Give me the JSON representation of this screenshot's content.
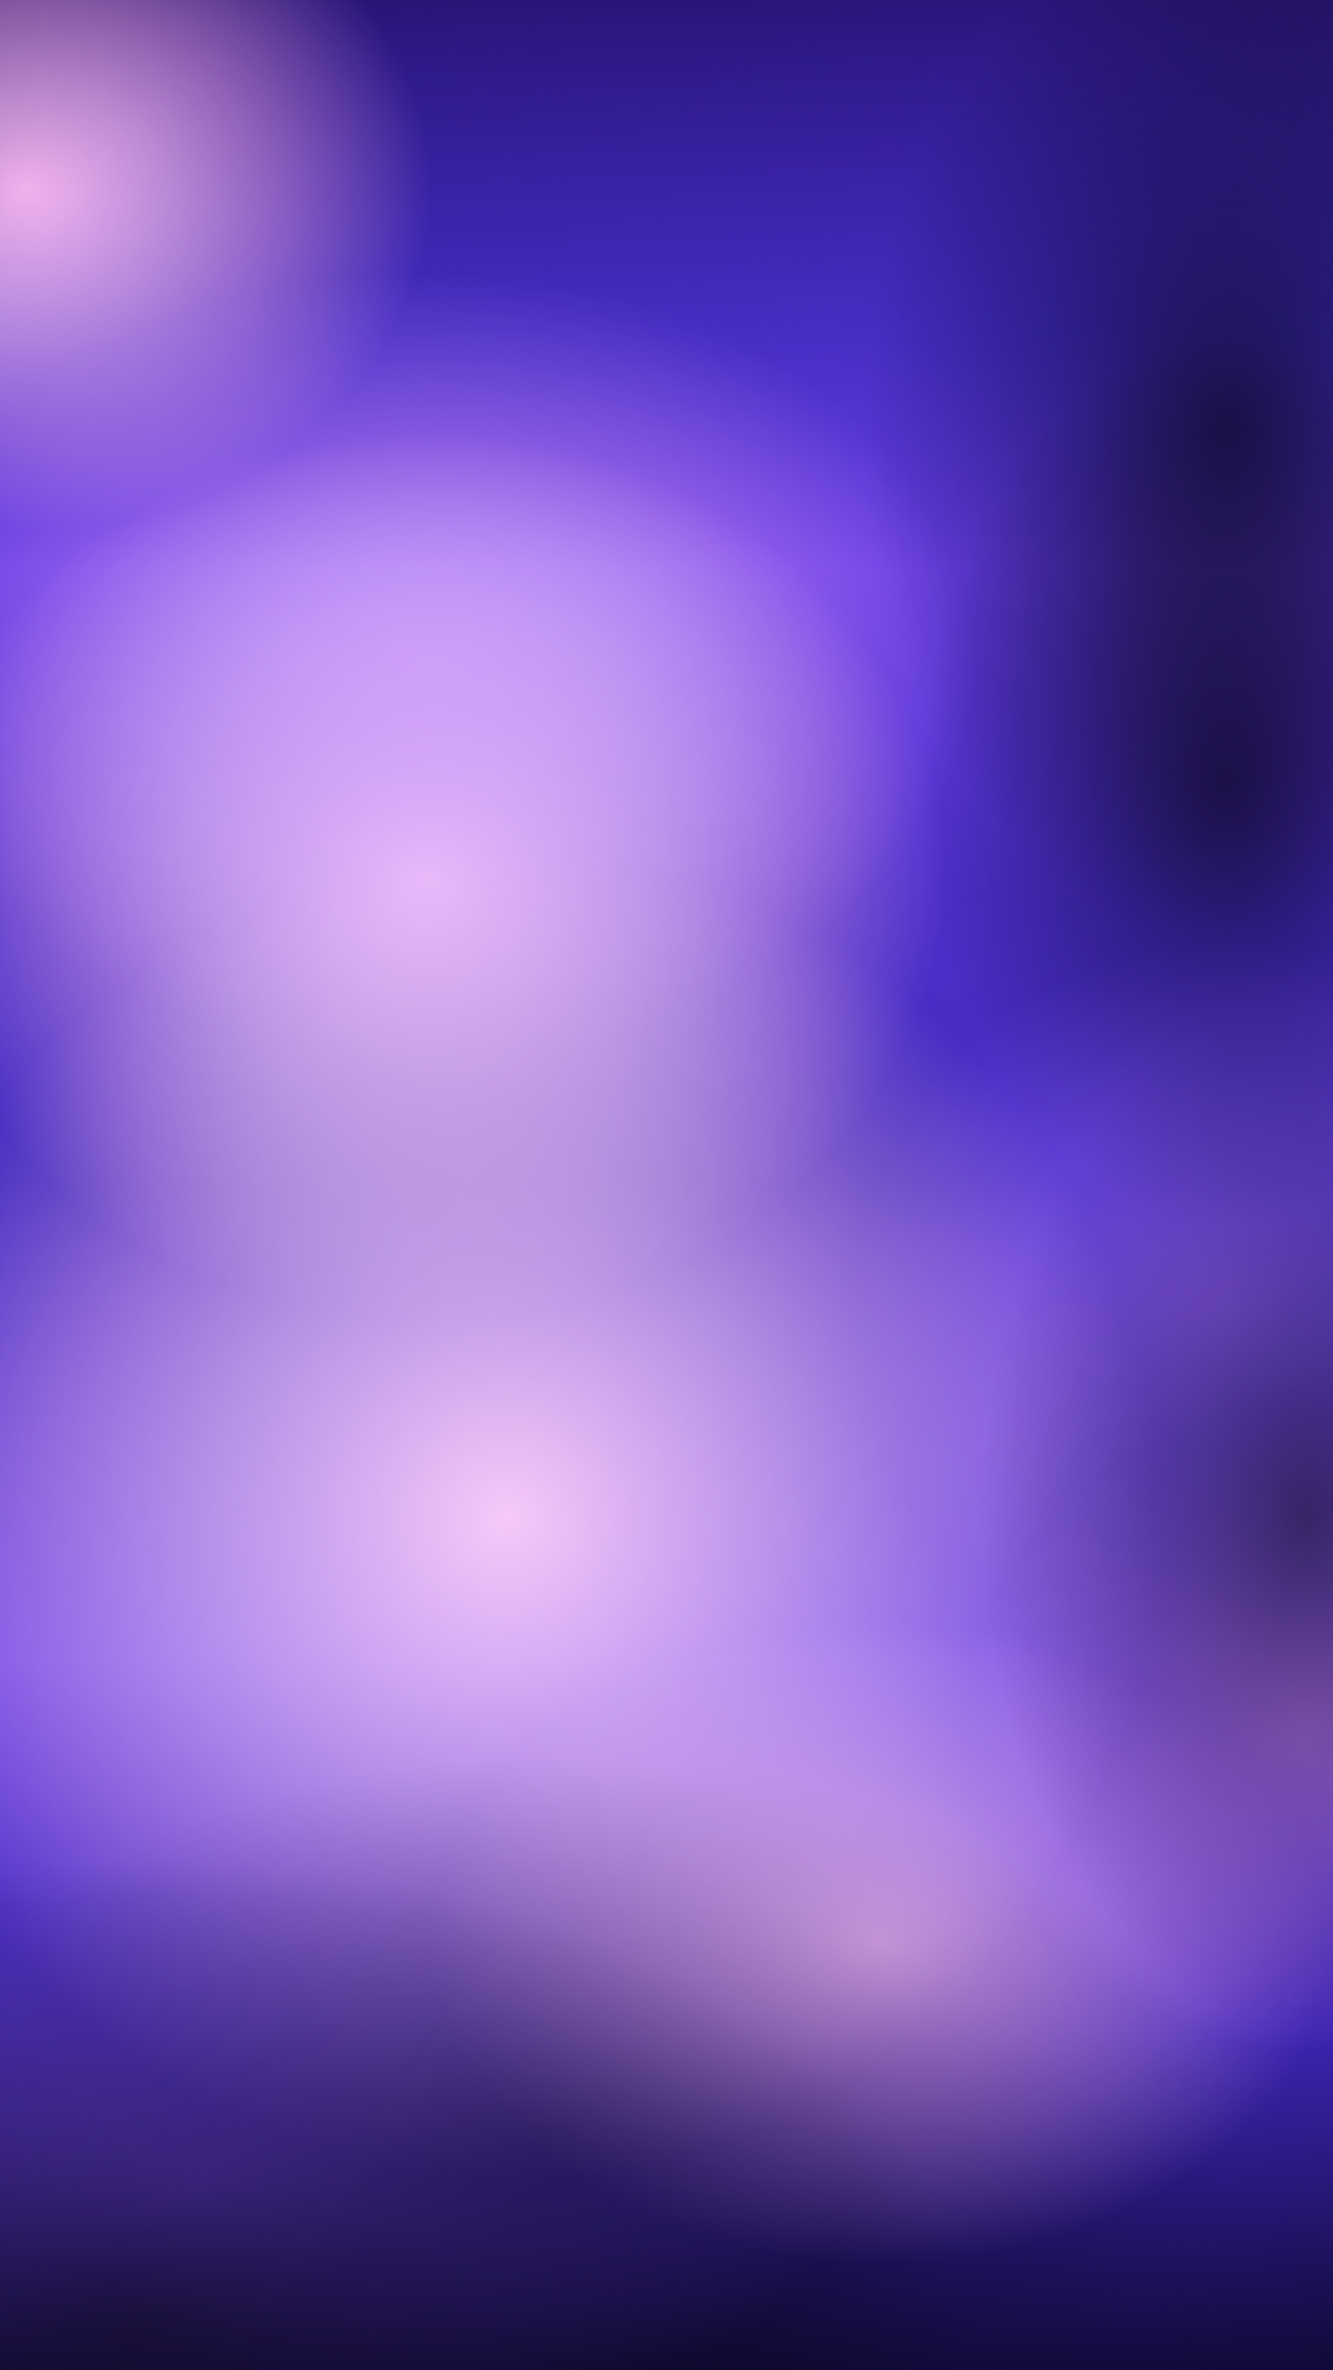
{
  "scene": {
    "description_colors": {
      "deep_indigo": "#1a0c52",
      "electric_violet": "#5a35e2",
      "lavender_glow": "#b778ff",
      "pink_glow": "#ffbeeb",
      "shadow": "#000000"
    },
    "texture": "grain-noise"
  }
}
